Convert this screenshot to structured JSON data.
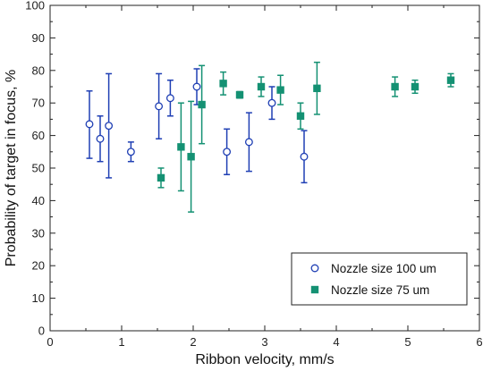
{
  "chart_data": {
    "type": "scatter",
    "xlabel": "Ribbon velocity, mm/s",
    "ylabel": "Probability of target in focus, %",
    "xlim": [
      0,
      6
    ],
    "ylim": [
      0,
      100
    ],
    "xticks": [
      0,
      1,
      2,
      3,
      4,
      5,
      6
    ],
    "yticks": [
      0,
      10,
      20,
      30,
      40,
      50,
      60,
      70,
      80,
      90,
      100
    ],
    "grid": false,
    "legend_position": "bottom-right",
    "series": [
      {
        "name": "Nozzle size 100 um",
        "marker": "open-circle",
        "color": "#1f3fb4",
        "points": [
          {
            "x": 0.55,
            "y": 63.5,
            "err_low": 10.5,
            "err_high": 10.2
          },
          {
            "x": 0.7,
            "y": 59.0,
            "err_low": 7.0,
            "err_high": 7.0
          },
          {
            "x": 0.82,
            "y": 63.0,
            "err_low": 16.0,
            "err_high": 16.0
          },
          {
            "x": 1.13,
            "y": 55.0,
            "err_low": 3.0,
            "err_high": 3.0
          },
          {
            "x": 1.52,
            "y": 69.0,
            "err_low": 10.0,
            "err_high": 10.0
          },
          {
            "x": 1.68,
            "y": 71.5,
            "err_low": 5.5,
            "err_high": 5.5
          },
          {
            "x": 2.05,
            "y": 75.0,
            "err_low": 5.5,
            "err_high": 5.5
          },
          {
            "x": 2.47,
            "y": 55.0,
            "err_low": 7.0,
            "err_high": 7.0
          },
          {
            "x": 2.78,
            "y": 58.0,
            "err_low": 9.0,
            "err_high": 9.0
          },
          {
            "x": 3.1,
            "y": 70.0,
            "err_low": 5.0,
            "err_high": 5.0
          },
          {
            "x": 3.55,
            "y": 53.5,
            "err_low": 8.0,
            "err_high": 8.0
          }
        ]
      },
      {
        "name": "Nozzle size 75 um",
        "marker": "filled-square",
        "color": "#149173",
        "points": [
          {
            "x": 1.55,
            "y": 47.0,
            "err_low": 3.0,
            "err_high": 3.0
          },
          {
            "x": 1.83,
            "y": 56.5,
            "err_low": 13.5,
            "err_high": 13.5
          },
          {
            "x": 1.97,
            "y": 53.5,
            "err_low": 17.0,
            "err_high": 17.0
          },
          {
            "x": 2.12,
            "y": 69.5,
            "err_low": 12.0,
            "err_high": 12.0
          },
          {
            "x": 2.42,
            "y": 76.0,
            "err_low": 3.5,
            "err_high": 3.5
          },
          {
            "x": 2.65,
            "y": 72.5,
            "err_low": 1.0,
            "err_high": 1.0
          },
          {
            "x": 2.95,
            "y": 75.0,
            "err_low": 3.0,
            "err_high": 3.0
          },
          {
            "x": 3.22,
            "y": 74.0,
            "err_low": 4.5,
            "err_high": 4.5
          },
          {
            "x": 3.5,
            "y": 66.0,
            "err_low": 4.0,
            "err_high": 4.0
          },
          {
            "x": 3.73,
            "y": 74.5,
            "err_low": 8.0,
            "err_high": 8.0
          },
          {
            "x": 4.82,
            "y": 75.0,
            "err_low": 3.0,
            "err_high": 3.0
          },
          {
            "x": 5.1,
            "y": 75.0,
            "err_low": 2.0,
            "err_high": 2.0
          },
          {
            "x": 5.6,
            "y": 77.0,
            "err_low": 2.0,
            "err_high": 2.0
          }
        ]
      }
    ]
  }
}
